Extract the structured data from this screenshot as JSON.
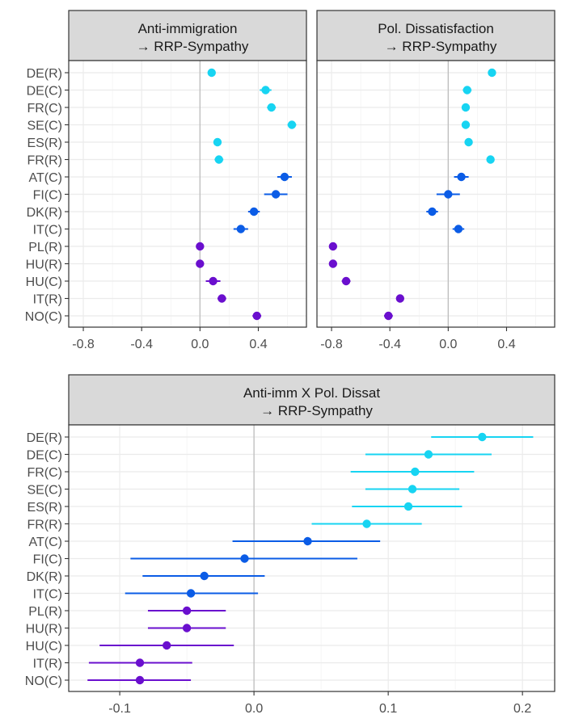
{
  "colors": {
    "cyan": "#17d4f2",
    "blue": "#0b5ce6",
    "purple": "#6a0fce",
    "strip_bg": "#d9d9d9",
    "grid": "#ebebeb",
    "zero_line": "#bdbdbd",
    "frame": "#333333"
  },
  "chart_data": [
    {
      "type": "scatter",
      "panel_type": "point-range",
      "title": "Anti-immigration\n→ RRP-Sympathy",
      "categories": [
        "DE(R)",
        "DE(C)",
        "FR(C)",
        "SE(C)",
        "ES(R)",
        "FR(R)",
        "AT(C)",
        "FI(C)",
        "DK(R)",
        "IT(C)",
        "PL(R)",
        "HU(R)",
        "HU(C)",
        "IT(R)",
        "NO(C)"
      ],
      "values": [
        0.08,
        0.45,
        0.49,
        0.63,
        0.12,
        0.13,
        0.58,
        0.52,
        0.37,
        0.28,
        0.0,
        0.0,
        0.09,
        0.15,
        0.39
      ],
      "lower": [
        0.06,
        0.41,
        0.46,
        0.6,
        0.1,
        0.1,
        0.53,
        0.44,
        0.33,
        0.23,
        -0.02,
        -0.02,
        0.04,
        0.12,
        0.36
      ],
      "upper": [
        0.1,
        0.49,
        0.52,
        0.66,
        0.14,
        0.16,
        0.63,
        0.6,
        0.41,
        0.33,
        0.02,
        0.02,
        0.14,
        0.18,
        0.42
      ],
      "color_groups": [
        "cyan",
        "cyan",
        "cyan",
        "cyan",
        "cyan",
        "cyan",
        "blue",
        "blue",
        "blue",
        "blue",
        "purple",
        "purple",
        "purple",
        "purple",
        "purple"
      ],
      "x_ticks": [
        -0.8,
        -0.4,
        0.0,
        0.4
      ],
      "x_tick_labels": [
        "-0.8",
        "-0.4",
        "0.0",
        "0.4"
      ],
      "xlim": [
        -0.9,
        0.73
      ],
      "show_y_labels": true,
      "grid": true,
      "reference_line": 0
    },
    {
      "type": "scatter",
      "panel_type": "point-range",
      "title": "Pol. Dissatisfaction\n→ RRP-Sympathy",
      "categories": [
        "DE(R)",
        "DE(C)",
        "FR(C)",
        "SE(C)",
        "ES(R)",
        "FR(R)",
        "AT(C)",
        "FI(C)",
        "DK(R)",
        "IT(C)",
        "PL(R)",
        "HU(R)",
        "HU(C)",
        "IT(R)",
        "NO(C)"
      ],
      "values": [
        0.3,
        0.13,
        0.12,
        0.12,
        0.14,
        0.29,
        0.09,
        0.0,
        -0.11,
        0.07,
        -0.79,
        -0.79,
        -0.7,
        -0.33,
        -0.41
      ],
      "lower": [
        0.28,
        0.1,
        0.1,
        0.1,
        0.12,
        0.27,
        0.04,
        -0.08,
        -0.15,
        0.03,
        -0.81,
        -0.81,
        -0.73,
        -0.35,
        -0.44
      ],
      "upper": [
        0.32,
        0.16,
        0.14,
        0.14,
        0.16,
        0.31,
        0.14,
        0.08,
        -0.07,
        0.11,
        -0.77,
        -0.77,
        -0.67,
        -0.31,
        -0.38
      ],
      "color_groups": [
        "cyan",
        "cyan",
        "cyan",
        "cyan",
        "cyan",
        "cyan",
        "blue",
        "blue",
        "blue",
        "blue",
        "purple",
        "purple",
        "purple",
        "purple",
        "purple"
      ],
      "x_ticks": [
        -0.8,
        -0.4,
        0.0,
        0.4
      ],
      "x_tick_labels": [
        "-0.8",
        "-0.4",
        "0.0",
        "0.4"
      ],
      "xlim": [
        -0.9,
        0.73
      ],
      "show_y_labels": false,
      "grid": true,
      "reference_line": 0
    },
    {
      "type": "scatter",
      "panel_type": "point-range",
      "title": "Anti-imm X Pol. Dissat\n→ RRP-Sympathy",
      "categories": [
        "DE(R)",
        "DE(C)",
        "FR(C)",
        "SE(C)",
        "ES(R)",
        "FR(R)",
        "AT(C)",
        "FI(C)",
        "DK(R)",
        "IT(C)",
        "PL(R)",
        "HU(R)",
        "HU(C)",
        "IT(R)",
        "NO(C)"
      ],
      "values": [
        0.17,
        0.13,
        0.12,
        0.118,
        0.115,
        0.084,
        0.04,
        -0.007,
        -0.037,
        -0.047,
        -0.05,
        -0.05,
        -0.065,
        -0.085,
        -0.085
      ],
      "lower": [
        0.132,
        0.083,
        0.072,
        0.083,
        0.073,
        0.043,
        -0.016,
        -0.092,
        -0.083,
        -0.096,
        -0.079,
        -0.079,
        -0.115,
        -0.123,
        -0.124
      ],
      "upper": [
        0.208,
        0.177,
        0.164,
        0.153,
        0.155,
        0.125,
        0.094,
        0.077,
        0.008,
        0.003,
        -0.021,
        -0.021,
        -0.015,
        -0.046,
        -0.047
      ],
      "color_groups": [
        "cyan",
        "cyan",
        "cyan",
        "cyan",
        "cyan",
        "cyan",
        "blue",
        "blue",
        "blue",
        "blue",
        "purple",
        "purple",
        "purple",
        "purple",
        "purple"
      ],
      "x_ticks": [
        -0.1,
        0.0,
        0.1,
        0.2
      ],
      "x_tick_labels": [
        "-0.1",
        "0.0",
        "0.1",
        "0.2"
      ],
      "xlim": [
        -0.138,
        0.224
      ],
      "show_y_labels": true,
      "grid": true,
      "reference_line": 0
    }
  ]
}
